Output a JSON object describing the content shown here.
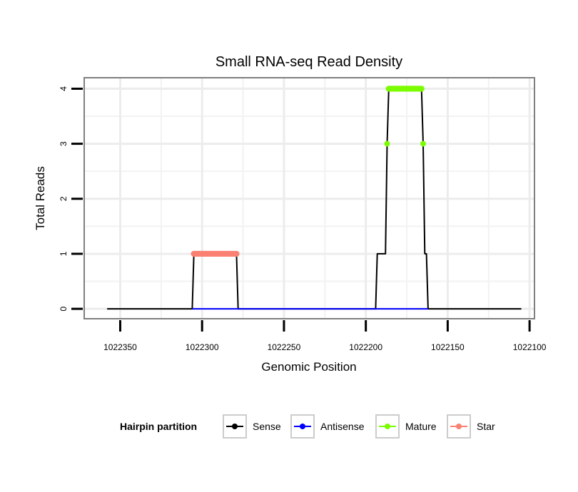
{
  "chart_data": {
    "type": "line",
    "title": "Small RNA-seq Read Density",
    "xlabel": "Genomic Position",
    "ylabel": "Total Reads",
    "x_reversed": true,
    "xlim": [
      1022097,
      1022372
    ],
    "ylim": [
      -0.18,
      4.2
    ],
    "x_ticks": [
      1022350,
      1022300,
      1022250,
      1022200,
      1022150,
      1022100
    ],
    "x_tick_labels": [
      "1022350",
      "1022300",
      "1022250",
      "1022200",
      "1022150",
      "1022100"
    ],
    "y_ticks": [
      0,
      1,
      2,
      3,
      4
    ],
    "y_tick_labels": [
      "0",
      "1",
      "2",
      "3",
      "4"
    ],
    "grid": true,
    "legend": {
      "title": "Hairpin partition",
      "position": "bottom",
      "entries": [
        {
          "name": "Sense",
          "color": "#000000"
        },
        {
          "name": "Antisense",
          "color": "#0000ff"
        },
        {
          "name": "Mature",
          "color": "#7cfc00"
        },
        {
          "name": "Star",
          "color": "#fa8072"
        }
      ]
    },
    "series": [
      {
        "name": "Sense",
        "color": "#000000",
        "points": [
          [
            1022358,
            0
          ],
          [
            1022306,
            0
          ],
          [
            1022305,
            1
          ],
          [
            1022279,
            1
          ],
          [
            1022278,
            0
          ],
          [
            1022194,
            0
          ],
          [
            1022193,
            1
          ],
          [
            1022188,
            1
          ],
          [
            1022187,
            3
          ],
          [
            1022186,
            4
          ],
          [
            1022166,
            4
          ],
          [
            1022165,
            3
          ],
          [
            1022164,
            1
          ],
          [
            1022163,
            1
          ],
          [
            1022162,
            0
          ],
          [
            1022105,
            0
          ]
        ]
      },
      {
        "name": "Antisense",
        "color": "#0000ff",
        "points": [
          [
            1022306,
            0
          ],
          [
            1022278,
            0
          ],
          [
            1022194,
            0
          ],
          [
            1022162,
            0
          ]
        ]
      }
    ],
    "mature_range": [
      1022186,
      1022166
    ],
    "mature_edge_points": [
      [
        1022187,
        3
      ],
      [
        1022165,
        3
      ]
    ],
    "star_range": [
      1022305,
      1022279
    ]
  }
}
